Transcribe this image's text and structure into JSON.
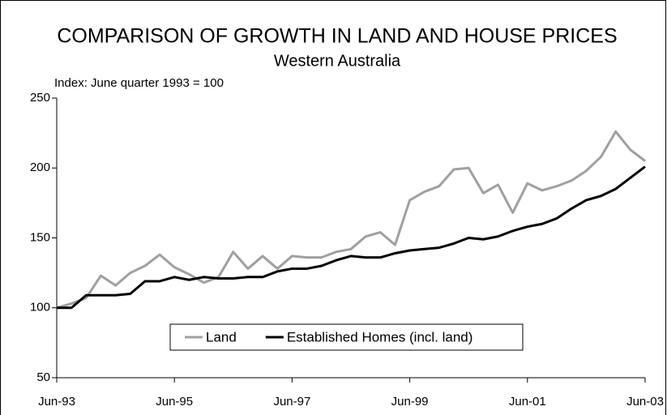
{
  "chart_data": {
    "type": "line",
    "title": "COMPARISON OF GROWTH IN LAND AND HOUSE PRICES",
    "subtitle": "Western Australia",
    "annotation": "Index: June quarter 1993 = 100",
    "categories": [
      "Jun-93",
      null,
      null,
      null,
      null,
      null,
      null,
      null,
      "Jun-95",
      null,
      null,
      null,
      null,
      null,
      null,
      null,
      "Jun-97",
      null,
      null,
      null,
      null,
      null,
      null,
      null,
      "Jun-99",
      null,
      null,
      null,
      null,
      null,
      null,
      null,
      "Jun-01",
      null,
      null,
      null,
      null,
      null,
      null,
      null,
      "Jun-03"
    ],
    "series": [
      {
        "name": "Land",
        "color": "#a0a0a0",
        "values": [
          100,
          103,
          107,
          123,
          116,
          125,
          130,
          138,
          129,
          124,
          118,
          122,
          140,
          128,
          137,
          128,
          137,
          136,
          136,
          140,
          142,
          151,
          154,
          145,
          177,
          183,
          187,
          199,
          200,
          182,
          188,
          168,
          189,
          184,
          187,
          191,
          198,
          208,
          226,
          213,
          205
        ]
      },
      {
        "name": "Established Homes (incl. land)",
        "color": "#000000",
        "values": [
          100,
          100,
          109,
          109,
          109,
          110,
          119,
          119,
          122,
          120,
          122,
          121,
          121,
          122,
          122,
          126,
          128,
          128,
          130,
          134,
          137,
          136,
          136,
          139,
          141,
          142,
          143,
          146,
          150,
          149,
          151,
          155,
          158,
          160,
          164,
          171,
          177,
          180,
          185,
          193,
          201
        ]
      }
    ],
    "ylim": [
      50,
      250
    ],
    "yticks": [
      50,
      100,
      150,
      200,
      250
    ],
    "grid": false,
    "legend": "lower center"
  }
}
